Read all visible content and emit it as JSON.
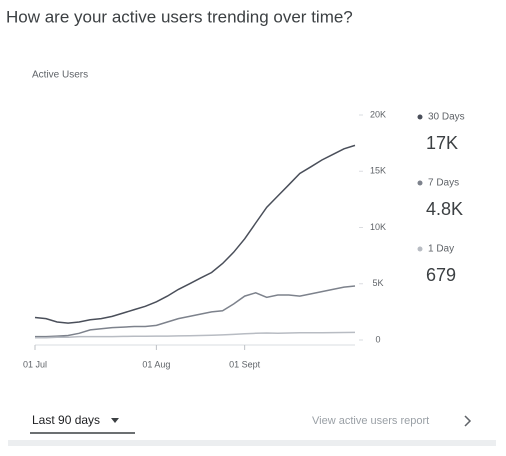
{
  "header": {
    "title": "How are your active users trending over time?"
  },
  "chart_data": {
    "type": "line",
    "subtitle": "Active Users",
    "categories": [
      "01 Jul",
      null,
      null,
      null,
      null,
      null,
      null,
      null,
      null,
      null,
      null,
      "01 Aug",
      null,
      null,
      null,
      null,
      null,
      null,
      null,
      "01 Sept",
      null,
      null,
      null,
      null,
      null,
      null,
      null,
      null,
      null,
      null
    ],
    "series": [
      {
        "name": "30 Days",
        "color": "#4a4f5a",
        "latest_label": "17K",
        "values": [
          2000,
          1900,
          1600,
          1500,
          1600,
          1800,
          1900,
          2100,
          2400,
          2700,
          3000,
          3400,
          3900,
          4500,
          5000,
          5500,
          6000,
          6800,
          7800,
          9000,
          10400,
          11800,
          12800,
          13800,
          14800,
          15400,
          16000,
          16500,
          17000,
          17300
        ]
      },
      {
        "name": "7 Days",
        "color": "#7d828c",
        "latest_label": "4.8K",
        "values": [
          300,
          300,
          350,
          400,
          600,
          900,
          1000,
          1100,
          1150,
          1200,
          1200,
          1300,
          1600,
          1900,
          2100,
          2300,
          2500,
          2600,
          3200,
          3900,
          4200,
          3800,
          4000,
          4000,
          3900,
          4100,
          4300,
          4500,
          4700,
          4800
        ]
      },
      {
        "name": "1 Day",
        "color": "#b8bcc3",
        "latest_label": "679",
        "values": [
          200,
          200,
          250,
          250,
          300,
          300,
          300,
          300,
          320,
          330,
          340,
          350,
          350,
          360,
          380,
          400,
          420,
          450,
          500,
          550,
          600,
          620,
          600,
          620,
          640,
          650,
          640,
          660,
          670,
          679
        ]
      }
    ],
    "ylim": [
      0,
      20000
    ],
    "yticks": [
      {
        "value": 0,
        "label": "0"
      },
      {
        "value": 5000,
        "label": "5K"
      },
      {
        "value": 10000,
        "label": "10K"
      },
      {
        "value": 15000,
        "label": "15K"
      },
      {
        "value": 20000,
        "label": "20K"
      }
    ]
  },
  "footer": {
    "range": "Last 90 days",
    "link": "View active users report"
  }
}
